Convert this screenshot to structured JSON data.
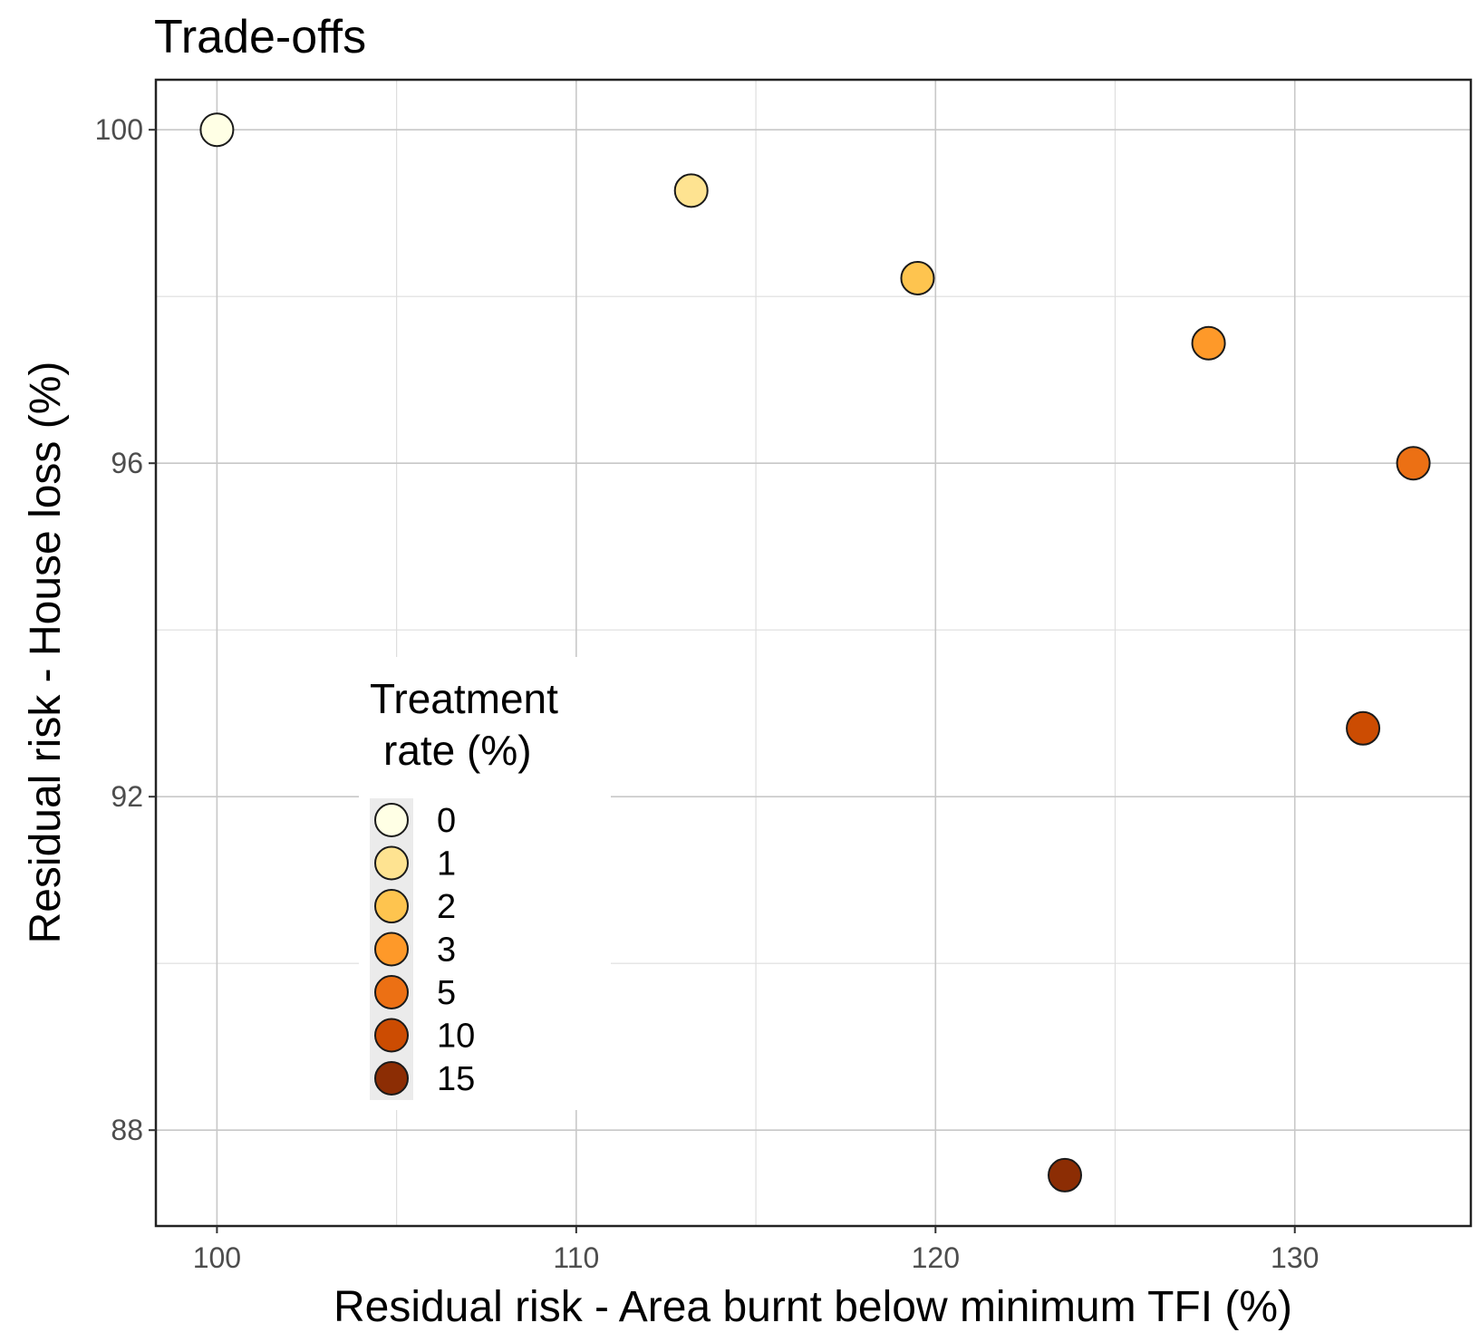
{
  "chart_data": {
    "type": "scatter",
    "title": "Trade-offs",
    "xlabel": "Residual risk - Area burnt below minimum TFI (%)",
    "ylabel": "Residual risk - House loss (%)",
    "xlim": [
      98.3,
      134.9
    ],
    "ylim": [
      86.85,
      100.6
    ],
    "x_ticks": [
      100,
      110,
      120,
      130
    ],
    "x_tick_labels": [
      "100",
      "110",
      "120",
      "130"
    ],
    "y_ticks": [
      88,
      92,
      96,
      100
    ],
    "y_tick_labels": [
      "88",
      "92",
      "96",
      "100"
    ],
    "grid": true,
    "legend": {
      "title_lines": [
        "Treatment",
        "rate (%)"
      ],
      "placement": "inside-left",
      "entries": [
        "0",
        "1",
        "2",
        "3",
        "5",
        "10",
        "15"
      ]
    },
    "series": [
      {
        "name": "0",
        "x": 100.0,
        "y": 100.0,
        "color": "#FFFFE5"
      },
      {
        "name": "1",
        "x": 113.2,
        "y": 99.27,
        "color": "#FEE391"
      },
      {
        "name": "2",
        "x": 119.5,
        "y": 98.22,
        "color": "#FEC44F"
      },
      {
        "name": "3",
        "x": 127.6,
        "y": 97.44,
        "color": "#FE9929"
      },
      {
        "name": "5",
        "x": 133.3,
        "y": 96.0,
        "color": "#EC7014"
      },
      {
        "name": "10",
        "x": 131.9,
        "y": 92.82,
        "color": "#CC4C02"
      },
      {
        "name": "15",
        "x": 123.6,
        "y": 87.46,
        "color": "#8C2D04"
      }
    ]
  }
}
